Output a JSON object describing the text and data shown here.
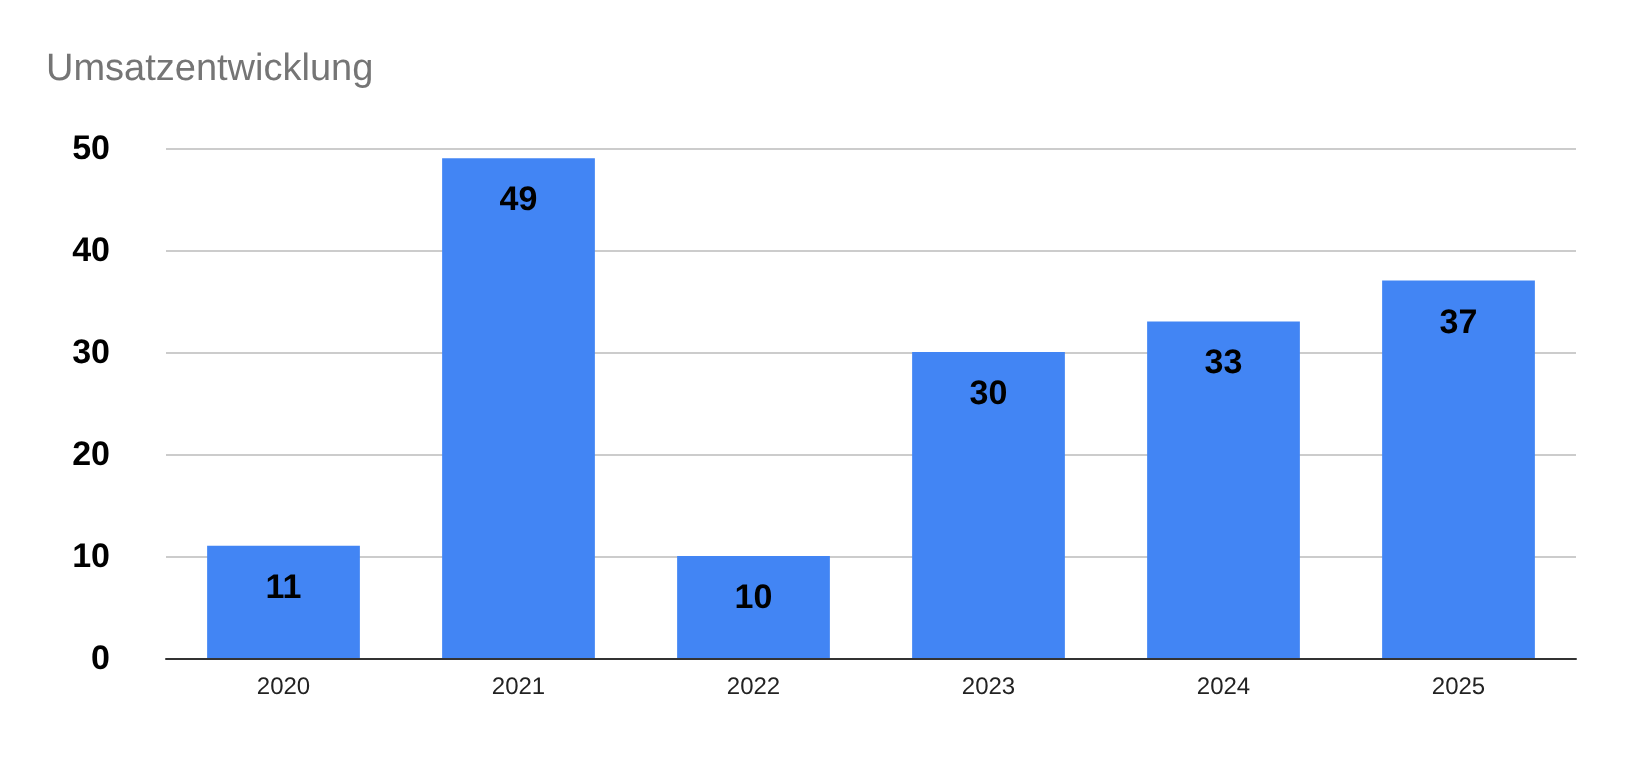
{
  "chart_data": {
    "type": "bar",
    "title": "Umsatzentwicklung",
    "categories": [
      "2020",
      "2021",
      "2022",
      "2023",
      "2024",
      "2025"
    ],
    "values": [
      11,
      49,
      10,
      30,
      33,
      37
    ],
    "color": "#4285f4",
    "ylim": [
      0,
      50
    ],
    "yticks": [
      0,
      10,
      20,
      30,
      40,
      50
    ],
    "grid": "y",
    "data_labels": true
  }
}
